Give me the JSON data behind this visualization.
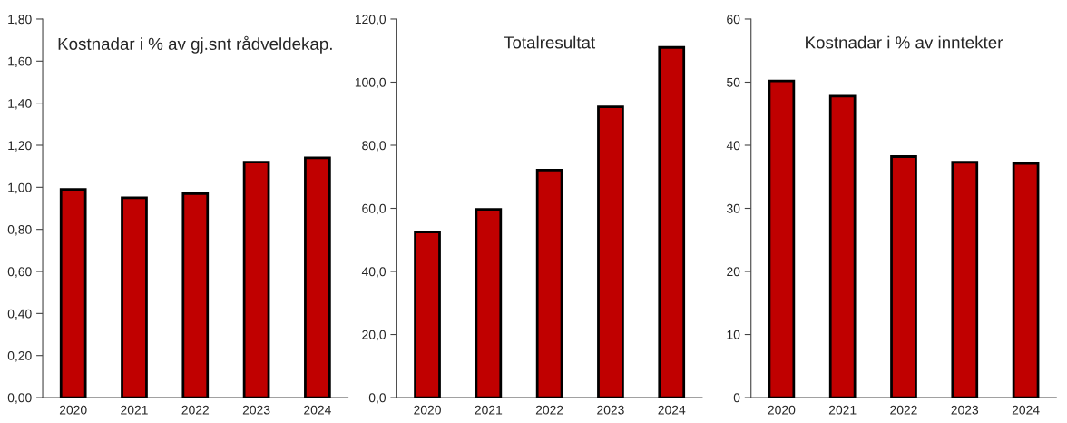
{
  "chart_data": [
    {
      "type": "bar",
      "title": "Kostnadar i % av gj.snt rådveldekap.",
      "categories": [
        "2020",
        "2021",
        "2022",
        "2023",
        "2024"
      ],
      "values": [
        0.99,
        0.95,
        0.97,
        1.12,
        1.14
      ],
      "color": "#c00000",
      "ylim": [
        0,
        1.8
      ],
      "yticks": [
        {
          "value": 0,
          "label": "0,00"
        },
        {
          "value": 0.2,
          "label": "0,20"
        },
        {
          "value": 0.4,
          "label": "0,40"
        },
        {
          "value": 0.6,
          "label": "0,60"
        },
        {
          "value": 0.8,
          "label": "0,80"
        },
        {
          "value": 1.0,
          "label": "1,00"
        },
        {
          "value": 1.2,
          "label": "1,20"
        },
        {
          "value": 1.4,
          "label": "1,40"
        },
        {
          "value": 1.6,
          "label": "1,60"
        },
        {
          "value": 1.8,
          "label": "1,80"
        }
      ],
      "grid": false
    },
    {
      "type": "bar",
      "title": "Totalresultat",
      "categories": [
        "2020",
        "2021",
        "2022",
        "2023",
        "2024"
      ],
      "values": [
        52.5,
        59.7,
        72.1,
        92.2,
        111.0
      ],
      "color": "#c00000",
      "ylim": [
        0,
        120
      ],
      "yticks": [
        {
          "value": 0,
          "label": "0,0"
        },
        {
          "value": 20,
          "label": "20,0"
        },
        {
          "value": 40,
          "label": "40,0"
        },
        {
          "value": 60,
          "label": "60,0"
        },
        {
          "value": 80,
          "label": "80,0"
        },
        {
          "value": 100,
          "label": "100,0"
        },
        {
          "value": 120,
          "label": "120,0"
        }
      ],
      "grid": false
    },
    {
      "type": "bar",
      "title": "Kostnadar i % av inntekter",
      "categories": [
        "2020",
        "2021",
        "2022",
        "2023",
        "2024"
      ],
      "values": [
        50.2,
        47.8,
        38.2,
        37.3,
        37.1
      ],
      "color": "#c00000",
      "ylim": [
        0,
        60
      ],
      "yticks": [
        0,
        10,
        20,
        30,
        40,
        50,
        60
      ],
      "grid": false
    }
  ]
}
